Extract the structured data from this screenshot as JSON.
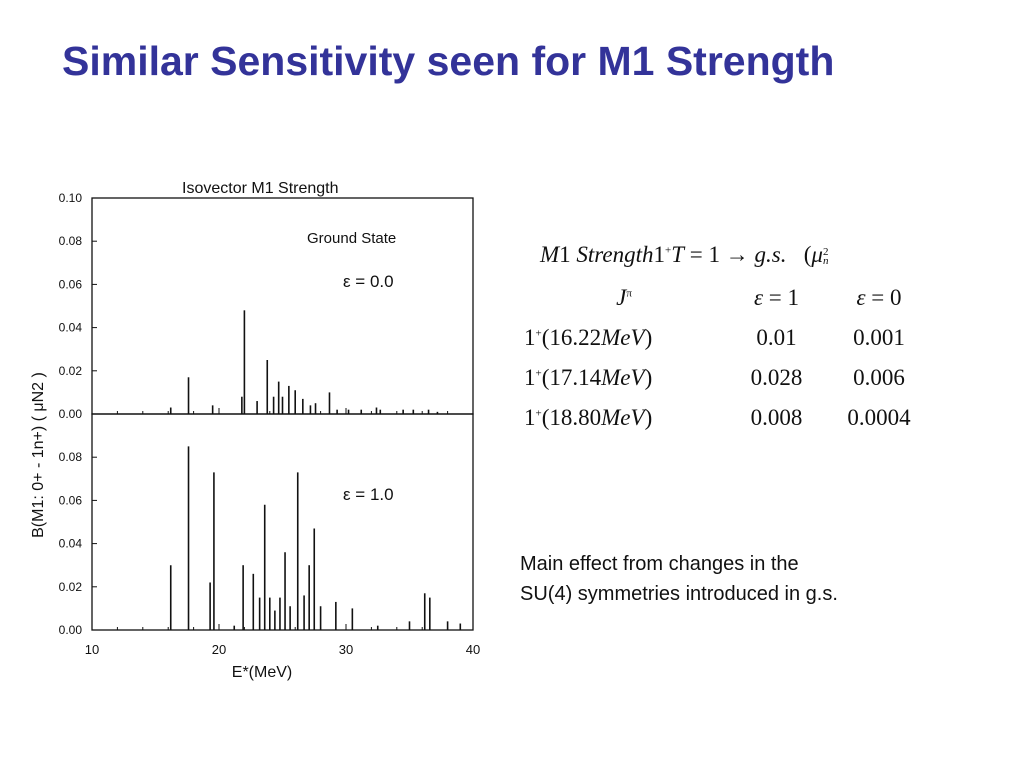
{
  "slide": {
    "title": "Similar Sensitivity seen for M1 Strength",
    "note_line1": "Main effect from changes in the",
    "note_line2": "SU(4) symmetries introduced in g.s.",
    "title_color": "#333399"
  },
  "chart_data": [
    {
      "type": "bar",
      "title": "Isovector M1 Strength",
      "subtitle": "Ground State",
      "annotation": "ε = 0.0",
      "ylabel": "B(M1: 0+ - 1n+) ( μN2 )",
      "xlabel": "E*(MeV)",
      "xlim": [
        10,
        40
      ],
      "ylim": [
        0,
        0.1
      ],
      "yticks": [
        "0.00",
        "0.02",
        "0.04",
        "0.06",
        "0.08",
        "0.10"
      ],
      "x": [
        16.2,
        17.6,
        19.5,
        21.8,
        22.0,
        23.0,
        23.8,
        24.3,
        24.7,
        25.0,
        25.5,
        26.0,
        26.6,
        27.2,
        27.6,
        28.7,
        29.3,
        30.2,
        31.2,
        32.4,
        32.7,
        34.5,
        35.3,
        36.5,
        37.2
      ],
      "values": [
        0.003,
        0.017,
        0.004,
        0.008,
        0.048,
        0.006,
        0.025,
        0.008,
        0.015,
        0.008,
        0.013,
        0.011,
        0.007,
        0.004,
        0.005,
        0.01,
        0.002,
        0.002,
        0.002,
        0.003,
        0.002,
        0.002,
        0.002,
        0.002,
        0.001
      ]
    },
    {
      "type": "bar",
      "annotation": "ε = 1.0",
      "xlabel": "E*(MeV)",
      "xticks": [
        "10",
        "20",
        "30",
        "40"
      ],
      "xlim": [
        10,
        40
      ],
      "ylim": [
        0,
        0.1
      ],
      "yticks": [
        "0.00",
        "0.02",
        "0.04",
        "0.06",
        "0.08"
      ],
      "x": [
        16.2,
        17.6,
        19.3,
        19.6,
        21.2,
        21.9,
        22.7,
        23.2,
        23.6,
        24.0,
        24.4,
        24.8,
        25.2,
        25.6,
        26.2,
        26.7,
        27.1,
        27.5,
        28.0,
        29.2,
        30.5,
        32.5,
        35.0,
        36.2,
        36.6,
        38.0,
        39.0
      ],
      "values": [
        0.03,
        0.085,
        0.022,
        0.073,
        0.002,
        0.03,
        0.026,
        0.015,
        0.058,
        0.015,
        0.009,
        0.015,
        0.036,
        0.011,
        0.073,
        0.016,
        0.03,
        0.047,
        0.011,
        0.013,
        0.01,
        0.002,
        0.004,
        0.017,
        0.015,
        0.004,
        0.003
      ]
    }
  ],
  "table": {
    "header": {
      "m1": "M",
      "one": "1",
      "strength": "Strength",
      "jp": "1",
      "jp_sup": "+",
      "tpart": "T",
      "eq": "= 1 →",
      "gs": "g.s.",
      "unit_open": "(",
      "mu": "μ",
      "mu_sup": "2",
      "mu_sub": "n"
    },
    "columns": {
      "j": "J",
      "j_sup": "π",
      "eps1_sym": "ε",
      "eps1_val": "= 1",
      "eps0_sym": "ε",
      "eps0_val": "= 0"
    },
    "rows": [
      {
        "state": "1",
        "sup": "+",
        "energy": "(16.22",
        "unit": "MeV",
        "close": ")",
        "eps1": "0.01",
        "eps0": "0.001"
      },
      {
        "state": "1",
        "sup": "+",
        "energy": "(17.14",
        "unit": "MeV",
        "close": ")",
        "eps1": "0.028",
        "eps0": "0.006"
      },
      {
        "state": "1",
        "sup": "+",
        "energy": "(18.80",
        "unit": "MeV",
        "close": ")",
        "eps1": "0.008",
        "eps0": "0.0004"
      }
    ]
  }
}
